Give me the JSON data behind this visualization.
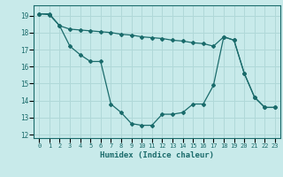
{
  "xlabel": "Humidex (Indice chaleur)",
  "bg_color": "#c8eaea",
  "grid_color": "#b0d8d8",
  "line_color": "#1a6b6b",
  "xlim": [
    -0.5,
    23.5
  ],
  "ylim": [
    11.8,
    19.6
  ],
  "yticks": [
    12,
    13,
    14,
    15,
    16,
    17,
    18,
    19
  ],
  "xticks": [
    0,
    1,
    2,
    3,
    4,
    5,
    6,
    7,
    8,
    9,
    10,
    11,
    12,
    13,
    14,
    15,
    16,
    17,
    18,
    19,
    20,
    21,
    22,
    23
  ],
  "series1_x": [
    0,
    1,
    2,
    3,
    4,
    5,
    6,
    7,
    8,
    9,
    10,
    11,
    12,
    13,
    14,
    15,
    16,
    17,
    18,
    19,
    20,
    21,
    22,
    23
  ],
  "series1_y": [
    19.1,
    19.1,
    18.4,
    17.2,
    16.7,
    16.3,
    16.3,
    13.8,
    13.3,
    12.65,
    12.55,
    12.55,
    13.2,
    13.2,
    13.3,
    13.8,
    13.8,
    14.9,
    17.75,
    17.55,
    15.6,
    14.2,
    13.6,
    13.6
  ],
  "series2_x": [
    0,
    1,
    2,
    3,
    4,
    5,
    6,
    7,
    8,
    9,
    10,
    11,
    12,
    13,
    14,
    15,
    16,
    17,
    18,
    19,
    20,
    21,
    22,
    23
  ],
  "series2_y": [
    19.1,
    19.05,
    18.4,
    18.2,
    18.15,
    18.1,
    18.05,
    18.0,
    17.9,
    17.85,
    17.75,
    17.7,
    17.65,
    17.55,
    17.5,
    17.4,
    17.35,
    17.2,
    17.75,
    17.55,
    15.6,
    14.2,
    13.6,
    13.6
  ]
}
